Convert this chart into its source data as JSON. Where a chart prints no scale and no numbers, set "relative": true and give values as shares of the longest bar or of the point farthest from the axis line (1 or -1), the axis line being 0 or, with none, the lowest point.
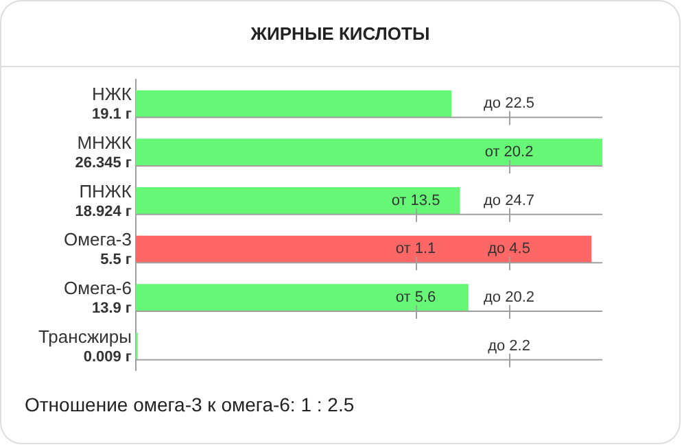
{
  "chart_data": {
    "type": "bar",
    "orientation": "horizontal",
    "relative": true,
    "title": "ЖИРНЫЕ КИСЛОТЫ",
    "categories": [
      "НЖК\n19.1 г",
      "МНЖК\n26.345 г",
      "ПНЖК\n18.924 г",
      "Омега-3\n5.5 г",
      "Омега-6\n13.9 г",
      "Трансжиры\n0.009 г"
    ],
    "values": [
      0.676,
      1,
      0.694,
      0.976,
      0.712,
      0.003
    ],
    "colors": [
      "#66f777",
      "#66f777",
      "#66f777",
      "#ff6666",
      "#66f777",
      "#66f777"
    ],
    "legend": false,
    "annotations": [
      "до 22.5",
      "от 20.2",
      "от 13.5",
      "до 24.7",
      "от 1.1",
      "до 4.5",
      "от 5.6",
      "до 20.2",
      "до 2.2",
      "Отношение омега-3 к омега-6: 1 : 2.5"
    ]
  }
}
